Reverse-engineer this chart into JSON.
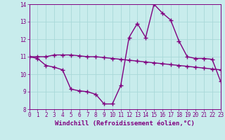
{
  "line1_x": [
    0,
    1,
    2,
    3,
    4,
    5,
    6,
    7,
    8,
    9,
    10,
    11,
    12,
    13,
    14,
    15,
    16,
    17,
    18,
    19,
    20,
    21,
    22,
    23
  ],
  "line1_y": [
    11.0,
    11.0,
    11.0,
    11.1,
    11.1,
    11.1,
    11.05,
    11.0,
    11.0,
    10.95,
    10.9,
    10.85,
    10.8,
    10.75,
    10.7,
    10.65,
    10.6,
    10.55,
    10.5,
    10.45,
    10.4,
    10.35,
    10.3,
    10.25
  ],
  "line2_x": [
    0,
    1,
    2,
    3,
    4,
    5,
    6,
    7,
    8,
    9,
    10,
    11,
    12,
    13,
    14,
    15,
    16,
    17,
    18,
    19,
    20,
    21,
    22,
    23
  ],
  "line2_y": [
    11.0,
    10.9,
    10.5,
    10.4,
    10.25,
    9.15,
    9.05,
    9.0,
    8.85,
    8.3,
    8.3,
    9.35,
    12.1,
    12.9,
    12.1,
    14.0,
    13.5,
    13.1,
    11.9,
    11.0,
    10.9,
    10.9,
    10.85,
    9.6
  ],
  "line_color": "#800080",
  "background_color": "#c8ecec",
  "grid_color": "#a8d8d8",
  "axis_color": "#800080",
  "xlabel": "Windchill (Refroidissement éolien,°C)",
  "ylim": [
    8,
    14
  ],
  "xlim": [
    0,
    23
  ],
  "yticks": [
    8,
    9,
    10,
    11,
    12,
    13,
    14
  ],
  "xticks": [
    0,
    1,
    2,
    3,
    4,
    5,
    6,
    7,
    8,
    9,
    10,
    11,
    12,
    13,
    14,
    15,
    16,
    17,
    18,
    19,
    20,
    21,
    22,
    23
  ],
  "marker": "+",
  "markersize": 4,
  "linewidth": 1.0,
  "xlabel_fontsize": 6.5,
  "tick_fontsize": 5.5
}
